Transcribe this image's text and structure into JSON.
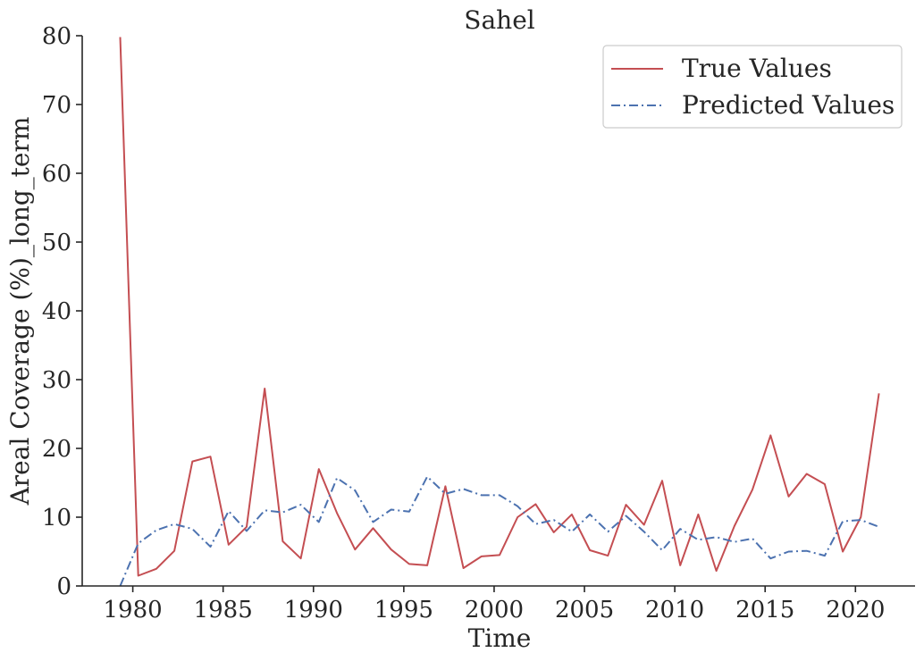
{
  "chart_data": {
    "type": "line",
    "title": "Sahel",
    "xlabel": "Time",
    "ylabel": "Areal Coverage (%)_long_term",
    "xlim": [
      1977.2,
      2023.3
    ],
    "ylim": [
      0,
      80
    ],
    "xticks": [
      1980,
      1985,
      1990,
      1995,
      2000,
      2005,
      2010,
      2015,
      2020
    ],
    "yticks": [
      0,
      10,
      20,
      30,
      40,
      50,
      60,
      70,
      80
    ],
    "grid": false,
    "legend_position": "top-right",
    "x": [
      1979.3,
      1980.3,
      1981.3,
      1982.3,
      1983.3,
      1984.3,
      1985.3,
      1986.3,
      1987.3,
      1988.3,
      1989.3,
      1990.3,
      1991.3,
      1992.3,
      1993.3,
      1994.3,
      1995.3,
      1996.3,
      1997.3,
      1998.3,
      1999.3,
      2000.3,
      2001.3,
      2002.3,
      2003.3,
      2004.3,
      2005.3,
      2006.3,
      2007.3,
      2008.3,
      2009.3,
      2010.3,
      2011.3,
      2012.3,
      2013.3,
      2014.3,
      2015.3,
      2016.3,
      2017.3,
      2018.3,
      2019.3,
      2020.3,
      2021.3
    ],
    "series": [
      {
        "name": "True Values",
        "color": "#c44e52",
        "style": "solid",
        "values": [
          79.8,
          1.5,
          2.5,
          5.1,
          18.1,
          18.8,
          6.0,
          8.6,
          28.7,
          6.5,
          4.0,
          17.0,
          10.6,
          5.3,
          8.4,
          5.3,
          3.2,
          3.0,
          14.5,
          2.6,
          4.3,
          4.5,
          10.0,
          11.9,
          7.8,
          10.4,
          5.2,
          4.4,
          11.8,
          8.9,
          15.3,
          3.0,
          10.4,
          2.2,
          8.7,
          14.0,
          21.9,
          13.0,
          16.3,
          14.8,
          5.0,
          10.0,
          28.0
        ]
      },
      {
        "name": "Predicted Values",
        "color": "#4c72b0",
        "style": "dashdot",
        "values": [
          0.0,
          6.2,
          8.1,
          9.0,
          8.3,
          5.7,
          10.9,
          8.0,
          11.0,
          10.7,
          11.8,
          9.3,
          15.7,
          13.9,
          9.3,
          11.1,
          10.8,
          15.9,
          13.4,
          14.1,
          13.2,
          13.2,
          11.6,
          9.0,
          9.6,
          7.9,
          10.4,
          7.9,
          10.2,
          7.9,
          5.2,
          8.3,
          6.7,
          7.1,
          6.4,
          6.9,
          4.0,
          5.0,
          5.1,
          4.4,
          9.4,
          9.6,
          8.6
        ]
      }
    ]
  }
}
